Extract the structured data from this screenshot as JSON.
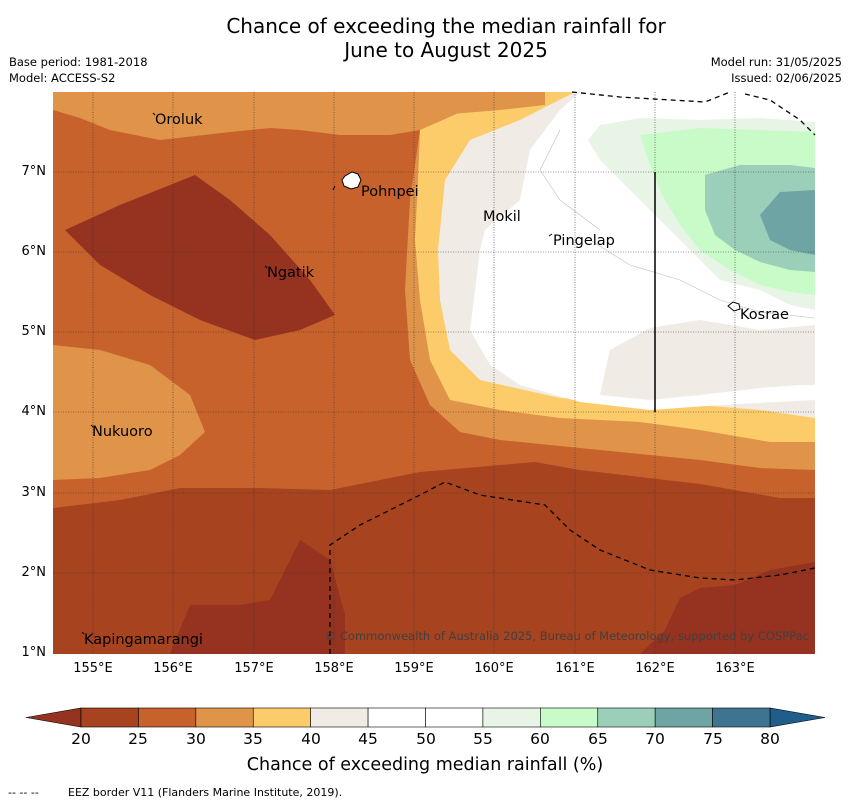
{
  "header": {
    "title_line1": "Chance of exceeding the median rainfall for",
    "title_line2": "June to August 2025",
    "base_period": "Base period: 1981-2018",
    "model": "Model: ACCESS-S2",
    "model_run": "Model run: 31/05/2025",
    "issued": "Issued: 02/06/2025"
  },
  "map": {
    "lat_labels": [
      "7°N",
      "6°N",
      "5°N",
      "4°N",
      "3°N",
      "2°N",
      "1°N"
    ],
    "lon_labels": [
      "155°E",
      "156°E",
      "157°E",
      "158°E",
      "159°E",
      "160°E",
      "161°E",
      "162°E",
      "163°E"
    ],
    "places": [
      {
        "name": "Oroluk",
        "lon": 155.75,
        "lat": 7.6
      },
      {
        "name": "Pohnpei",
        "lon": 158.3,
        "lat": 6.85
      },
      {
        "name": "Mokil",
        "lon": 159.8,
        "lat": 6.68
      },
      {
        "name": "Pingelap",
        "lon": 160.7,
        "lat": 6.22
      },
      {
        "name": "Ngatik",
        "lon": 157.15,
        "lat": 5.8
      },
      {
        "name": "Kosrae",
        "lon": 162.95,
        "lat": 5.3
      },
      {
        "name": "Nukuoro",
        "lon": 154.95,
        "lat": 3.85
      },
      {
        "name": "Kapingamarangi",
        "lon": 154.8,
        "lat": 1.08
      }
    ],
    "copyright": "© Commonwealth of Australia 2025, Bureau of Meteorology, supported by COSPPac"
  },
  "colorbar": {
    "ticks": [
      "20",
      "25",
      "30",
      "35",
      "40",
      "45",
      "50",
      "55",
      "60",
      "65",
      "70",
      "75",
      "80"
    ],
    "colors": [
      "#a8431f",
      "#c8622d",
      "#e0944a",
      "#fdcc6a",
      "#f0ebe5",
      "#ffffff",
      "#ffffff",
      "#e8f5e6",
      "#c8fbc8",
      "#9ccfba",
      "#6ea4a4",
      "#3f7490"
    ],
    "under_color": "#953220",
    "over_color": "#1f5d8a",
    "label": "Chance of exceeding median rainfall (%)"
  },
  "footer": {
    "legend_symbol": "-- -- --",
    "eez_note": "EEZ border V11 (Flanders Marine Institute, 2019)."
  }
}
